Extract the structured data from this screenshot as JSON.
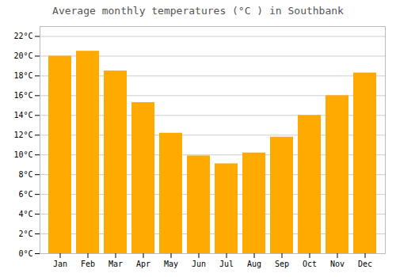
{
  "chart_data": {
    "type": "bar",
    "title": "Average monthly temperatures (°C ) in Southbank",
    "categories": [
      "Jan",
      "Feb",
      "Mar",
      "Apr",
      "May",
      "Jun",
      "Jul",
      "Aug",
      "Sep",
      "Oct",
      "Nov",
      "Dec"
    ],
    "values": [
      20.0,
      20.5,
      18.5,
      15.3,
      12.2,
      9.9,
      9.1,
      10.2,
      11.8,
      14.0,
      16.0,
      18.3
    ],
    "color": "#FFAA00",
    "ylim": [
      0,
      23
    ],
    "yticks": [
      {
        "value": 0,
        "label": "0°C"
      },
      {
        "value": 2,
        "label": "2°C"
      },
      {
        "value": 4,
        "label": "4°C"
      },
      {
        "value": 6,
        "label": "6°C"
      },
      {
        "value": 8,
        "label": "8°C"
      },
      {
        "value": 10,
        "label": "10°C"
      },
      {
        "value": 12,
        "label": "12°C"
      },
      {
        "value": 14,
        "label": "14°C"
      },
      {
        "value": 16,
        "label": "16°C"
      },
      {
        "value": 18,
        "label": "18°C"
      },
      {
        "value": 20,
        "label": "20°C"
      },
      {
        "value": 22,
        "label": "22°C"
      }
    ],
    "grid": true
  }
}
